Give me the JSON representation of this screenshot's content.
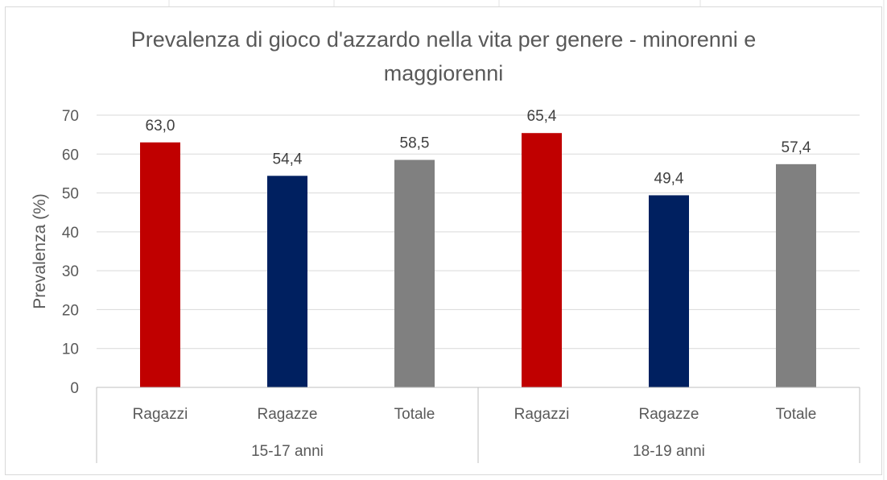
{
  "chart_data": {
    "type": "bar",
    "title": "Prevalenza di gioco d'azzardo nella vita per genere - minorenni e maggiorenni",
    "ylabel": "Prevalenza (%)",
    "xlabel": "",
    "ylim": [
      0,
      70
    ],
    "yticks": [
      0,
      10,
      20,
      30,
      40,
      50,
      60,
      70
    ],
    "grid": true,
    "groups": [
      {
        "label": "15-17 anni",
        "bars": [
          {
            "category": "Ragazzi",
            "value": 63.0,
            "label": "63,0",
            "color": "#c00000"
          },
          {
            "category": "Ragazze",
            "value": 54.4,
            "label": "54,4",
            "color": "#002060"
          },
          {
            "category": "Totale",
            "value": 58.5,
            "label": "58,5",
            "color": "#808080"
          }
        ]
      },
      {
        "label": "18-19 anni",
        "bars": [
          {
            "category": "Ragazzi",
            "value": 65.4,
            "label": "65,4",
            "color": "#c00000"
          },
          {
            "category": "Ragazze",
            "value": 49.4,
            "label": "49,4",
            "color": "#002060"
          },
          {
            "category": "Totale",
            "value": 57.4,
            "label": "57,4",
            "color": "#808080"
          }
        ]
      }
    ]
  }
}
